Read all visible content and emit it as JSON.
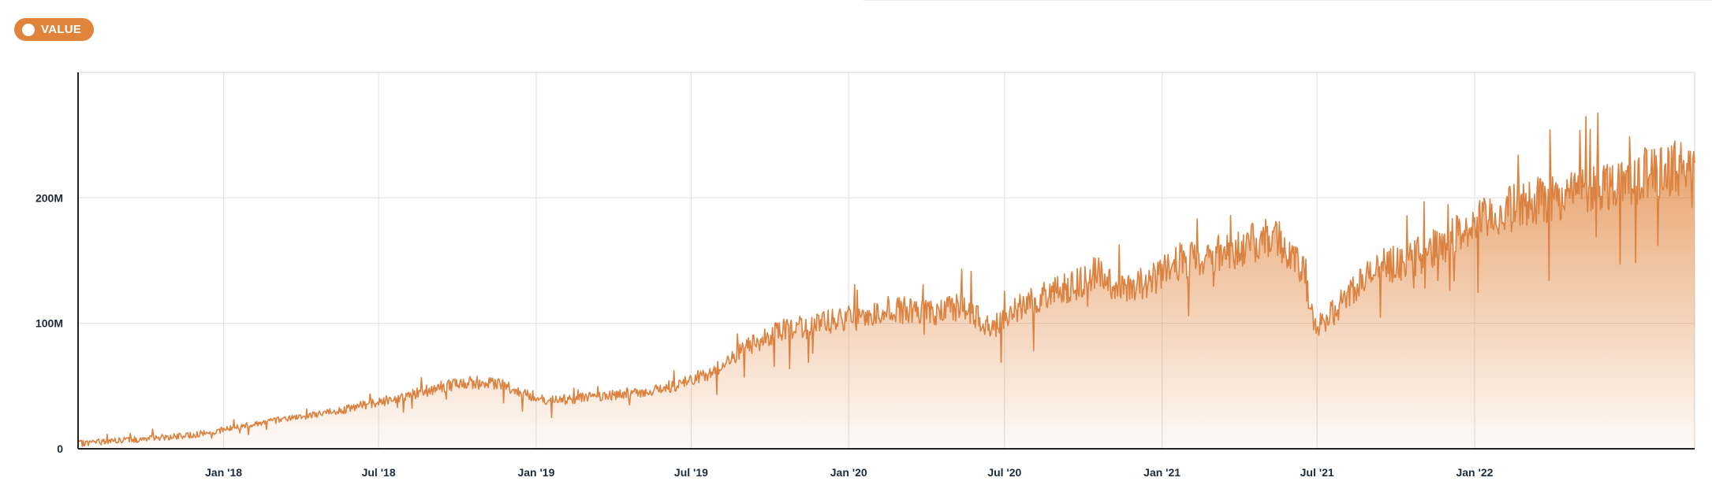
{
  "legend": {
    "label": "VALUE",
    "color": "#e0843c"
  },
  "colors": {
    "line": "#db8240",
    "fill": "#e0843c",
    "grid": "#e3e3e3",
    "axis": "#222222",
    "tick_text": "#1d2a3a"
  },
  "chart_data": {
    "type": "area",
    "title": "",
    "xlabel": "",
    "ylabel": "",
    "x_ticks": [
      {
        "date": "2018-01-01",
        "label": "Jan '18"
      },
      {
        "date": "2018-07-01",
        "label": "Jul '18"
      },
      {
        "date": "2019-01-01",
        "label": "Jan '19"
      },
      {
        "date": "2019-07-01",
        "label": "Jul '19"
      },
      {
        "date": "2020-01-01",
        "label": "Jan '20"
      },
      {
        "date": "2020-07-01",
        "label": "Jul '20"
      },
      {
        "date": "2021-01-01",
        "label": "Jan '21"
      },
      {
        "date": "2021-07-01",
        "label": "Jul '21"
      },
      {
        "date": "2022-01-01",
        "label": "Jan '22"
      }
    ],
    "y_ticks": [
      {
        "value": 0,
        "label": "0"
      },
      {
        "value": 100000000,
        "label": "100M"
      },
      {
        "value": 200000000,
        "label": "200M"
      }
    ],
    "xlim": [
      "2017-07-15",
      "2022-09-15"
    ],
    "ylim": [
      0,
      300000000
    ],
    "grid": true,
    "legend_position": "top-left",
    "series": [
      {
        "name": "VALUE",
        "points": [
          [
            "2017-07-15",
            4000000
          ],
          [
            "2017-08-15",
            6000000
          ],
          [
            "2017-09-15",
            7000000
          ],
          [
            "2017-10-15",
            9000000
          ],
          [
            "2017-11-15",
            10000000
          ],
          [
            "2017-12-15",
            13000000
          ],
          [
            "2018-01-15",
            17000000
          ],
          [
            "2018-02-15",
            21000000
          ],
          [
            "2018-03-15",
            24000000
          ],
          [
            "2018-04-15",
            27000000
          ],
          [
            "2018-05-15",
            30000000
          ],
          [
            "2018-06-15",
            35000000
          ],
          [
            "2018-07-15",
            39000000
          ],
          [
            "2018-08-15",
            44000000
          ],
          [
            "2018-09-15",
            50000000
          ],
          [
            "2018-10-15",
            53000000
          ],
          [
            "2018-11-15",
            52000000
          ],
          [
            "2018-12-15",
            45000000
          ],
          [
            "2019-01-15",
            38000000
          ],
          [
            "2019-02-15",
            40000000
          ],
          [
            "2019-03-15",
            42000000
          ],
          [
            "2019-04-15",
            44000000
          ],
          [
            "2019-05-15",
            46000000
          ],
          [
            "2019-06-15",
            51000000
          ],
          [
            "2019-07-15",
            58000000
          ],
          [
            "2019-08-15",
            70000000
          ],
          [
            "2019-09-15",
            85000000
          ],
          [
            "2019-10-15",
            95000000
          ],
          [
            "2019-11-15",
            97000000
          ],
          [
            "2019-12-15",
            102000000
          ],
          [
            "2020-01-15",
            105000000
          ],
          [
            "2020-02-15",
            112000000
          ],
          [
            "2020-03-15",
            110000000
          ],
          [
            "2020-04-15",
            108000000
          ],
          [
            "2020-05-15",
            115000000
          ],
          [
            "2020-06-15",
            95000000
          ],
          [
            "2020-07-15",
            112000000
          ],
          [
            "2020-08-15",
            122000000
          ],
          [
            "2020-09-15",
            128000000
          ],
          [
            "2020-10-15",
            140000000
          ],
          [
            "2020-11-15",
            128000000
          ],
          [
            "2020-12-15",
            132000000
          ],
          [
            "2021-01-15",
            148000000
          ],
          [
            "2021-02-15",
            153000000
          ],
          [
            "2021-03-15",
            157000000
          ],
          [
            "2021-04-15",
            163000000
          ],
          [
            "2021-05-15",
            170000000
          ],
          [
            "2021-06-15",
            140000000
          ],
          [
            "2021-06-28",
            95000000
          ],
          [
            "2021-07-15",
            105000000
          ],
          [
            "2021-08-15",
            130000000
          ],
          [
            "2021-09-15",
            145000000
          ],
          [
            "2021-10-15",
            150000000
          ],
          [
            "2021-11-15",
            160000000
          ],
          [
            "2021-12-15",
            172000000
          ],
          [
            "2022-01-15",
            183000000
          ],
          [
            "2022-02-15",
            192000000
          ],
          [
            "2022-03-15",
            198000000
          ],
          [
            "2022-04-15",
            202000000
          ],
          [
            "2022-05-15",
            208000000
          ],
          [
            "2022-06-15",
            212000000
          ],
          [
            "2022-07-15",
            218000000
          ],
          [
            "2022-08-15",
            222000000
          ],
          [
            "2022-09-15",
            228000000
          ]
        ]
      }
    ]
  }
}
